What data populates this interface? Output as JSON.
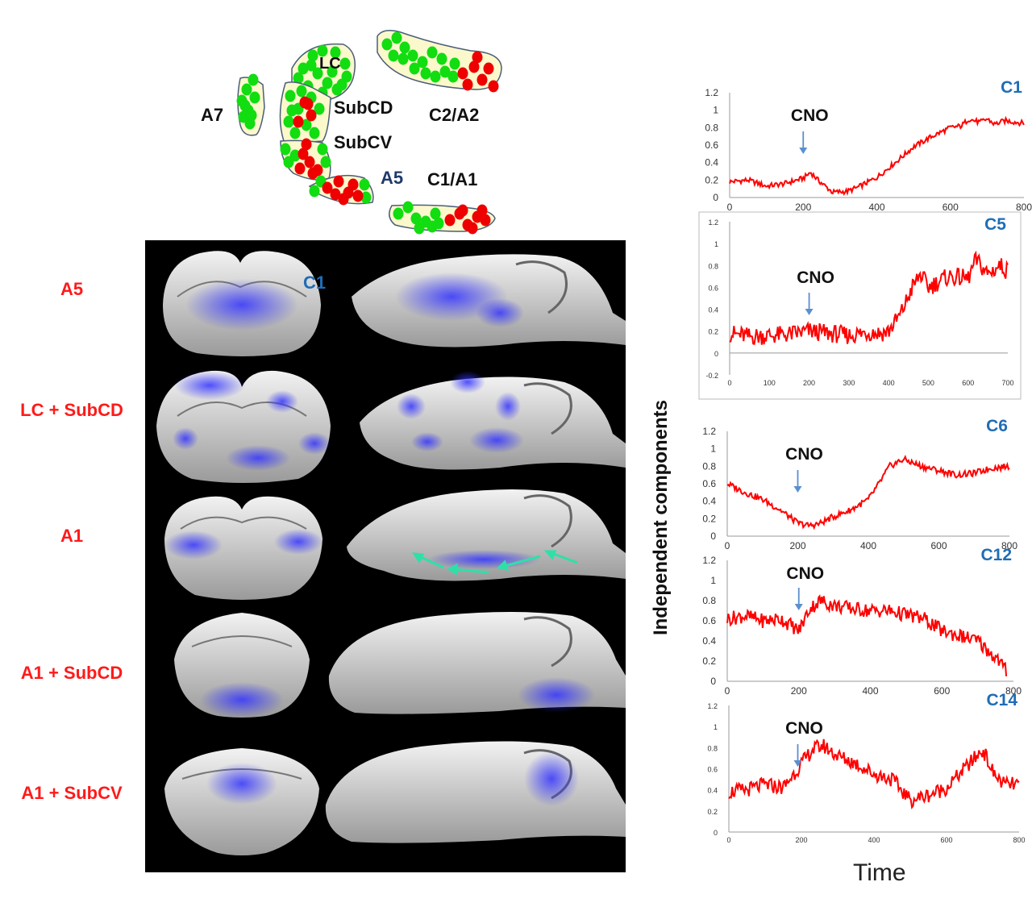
{
  "schematic": {
    "labels": {
      "lc": "LC",
      "a7": "A7",
      "subcd": "SubCD",
      "subcv": "SubCV",
      "c2a2": "C2/A2",
      "a5": "A5",
      "c1a1": "C1/A1"
    },
    "colors": {
      "green": "#11dd11",
      "red": "#ee0000",
      "fill": "#fbf8cc",
      "outline": "#4a5e78"
    }
  },
  "brain_panel": {
    "row_labels": [
      "A5",
      "LC + SubCD",
      "A1",
      "A1 + SubCD",
      "A1 + SubCV"
    ],
    "c1_label": "C1",
    "colors": {
      "highlight": "#3333ff",
      "arrow": "#2ee0a8"
    }
  },
  "y_axis_title": "Independent components",
  "x_axis_title": "Time",
  "chart_data": [
    {
      "type": "line",
      "component": "C1",
      "marker": "CNO",
      "marker_x": 200,
      "xlim": [
        0,
        800
      ],
      "ylim": [
        0,
        1.2
      ],
      "xticks": [
        "0",
        "200",
        "400",
        "600",
        "800"
      ],
      "yticks": [
        "0",
        "0.2",
        "0.4",
        "0.6",
        "0.8",
        "1",
        "1.2"
      ],
      "series": [
        {
          "name": "C1",
          "color": "#ff0000",
          "x": [
            0,
            50,
            100,
            150,
            200,
            220,
            240,
            280,
            320,
            350,
            400,
            450,
            500,
            550,
            600,
            630,
            650,
            680,
            700,
            720,
            750,
            800
          ],
          "y": [
            0.18,
            0.2,
            0.13,
            0.16,
            0.22,
            0.29,
            0.2,
            0.06,
            0.07,
            0.12,
            0.23,
            0.4,
            0.58,
            0.7,
            0.8,
            0.82,
            0.9,
            0.86,
            0.9,
            0.84,
            0.88,
            0.85
          ]
        }
      ]
    },
    {
      "type": "line",
      "component": "C5",
      "marker": "CNO",
      "marker_x": 200,
      "xlim": [
        0,
        700
      ],
      "ylim": [
        -0.2,
        1.2
      ],
      "xticks": [
        "0",
        "100",
        "200",
        "300",
        "400",
        "500",
        "600",
        "700"
      ],
      "yticks": [
        "-0.2",
        "0",
        "0.2",
        "0.4",
        "0.6",
        "0.8",
        "1",
        "1.2"
      ],
      "series": [
        {
          "name": "C5",
          "color": "#ff0000",
          "x": [
            0,
            50,
            100,
            150,
            200,
            250,
            300,
            350,
            380,
            400,
            430,
            460,
            480,
            500,
            550,
            600,
            620,
            650,
            680,
            700
          ],
          "y": [
            0.18,
            0.15,
            0.16,
            0.17,
            0.2,
            0.18,
            0.16,
            0.19,
            0.18,
            0.2,
            0.35,
            0.6,
            0.72,
            0.6,
            0.7,
            0.68,
            0.85,
            0.72,
            0.8,
            0.75
          ]
        }
      ]
    },
    {
      "type": "line",
      "component": "C6",
      "marker": "CNO",
      "marker_x": 200,
      "xlim": [
        0,
        800
      ],
      "ylim": [
        0,
        1.2
      ],
      "xticks": [
        "0",
        "200",
        "400",
        "600",
        "800"
      ],
      "yticks": [
        "0",
        "0.2",
        "0.4",
        "0.6",
        "0.8",
        "1",
        "1.2"
      ],
      "series": [
        {
          "name": "C6",
          "color": "#ff0000",
          "x": [
            0,
            50,
            100,
            150,
            200,
            230,
            260,
            300,
            350,
            400,
            430,
            460,
            500,
            550,
            600,
            650,
            700,
            750,
            800
          ],
          "y": [
            0.6,
            0.5,
            0.42,
            0.3,
            0.15,
            0.12,
            0.14,
            0.22,
            0.3,
            0.42,
            0.6,
            0.8,
            0.88,
            0.8,
            0.75,
            0.7,
            0.72,
            0.78,
            0.8
          ]
        }
      ]
    },
    {
      "type": "line",
      "component": "C12",
      "marker": "CNO",
      "marker_x": 200,
      "xlim": [
        0,
        800
      ],
      "ylim": [
        0,
        1.2
      ],
      "xticks": [
        "0",
        "200",
        "400",
        "600",
        "800"
      ],
      "yticks": [
        "0",
        "0.2",
        "0.4",
        "0.6",
        "0.8",
        "1",
        "1.2"
      ],
      "series": [
        {
          "name": "C12",
          "color": "#ff0000",
          "x": [
            0,
            50,
            100,
            150,
            180,
            200,
            230,
            260,
            300,
            350,
            400,
            450,
            500,
            550,
            600,
            650,
            700,
            730,
            760,
            780
          ],
          "y": [
            0.62,
            0.65,
            0.6,
            0.62,
            0.55,
            0.5,
            0.72,
            0.8,
            0.75,
            0.72,
            0.7,
            0.7,
            0.66,
            0.62,
            0.5,
            0.45,
            0.4,
            0.3,
            0.2,
            0.1
          ]
        }
      ]
    },
    {
      "type": "line",
      "component": "C14",
      "marker": "CNO",
      "marker_x": 190,
      "xlim": [
        0,
        800
      ],
      "ylim": [
        0,
        1.2
      ],
      "xticks": [
        "0",
        "200",
        "400",
        "600",
        "800"
      ],
      "yticks": [
        "0",
        "0.2",
        "0.4",
        "0.6",
        "0.8",
        "1",
        "1.2"
      ],
      "series": [
        {
          "name": "C14",
          "color": "#ff0000",
          "x": [
            0,
            50,
            100,
            150,
            190,
            230,
            260,
            300,
            350,
            400,
            450,
            500,
            550,
            600,
            650,
            700,
            730,
            760,
            800
          ],
          "y": [
            0.38,
            0.4,
            0.45,
            0.42,
            0.6,
            0.78,
            0.82,
            0.72,
            0.65,
            0.55,
            0.5,
            0.3,
            0.35,
            0.42,
            0.6,
            0.78,
            0.55,
            0.45,
            0.45
          ]
        }
      ]
    }
  ]
}
